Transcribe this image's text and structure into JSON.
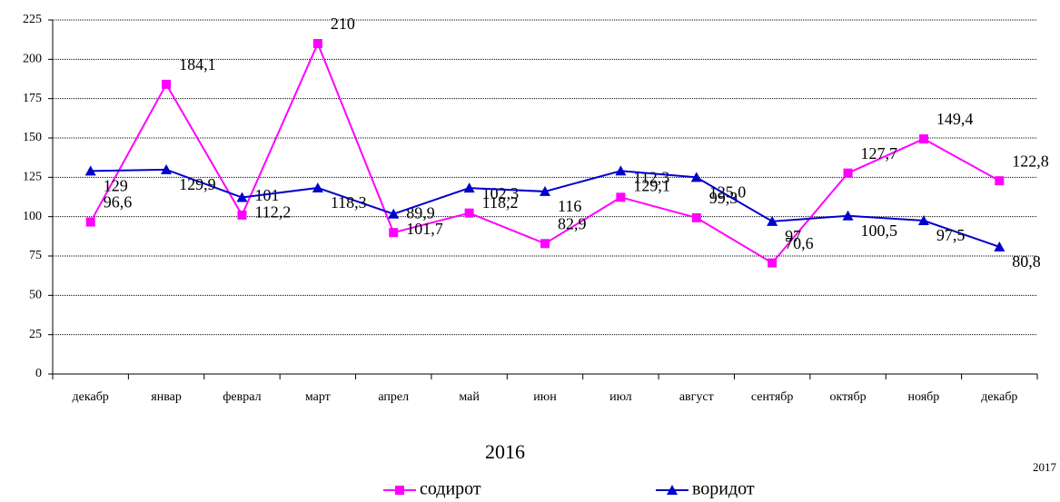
{
  "chart_data": {
    "type": "line",
    "categories": [
      "декабр",
      "январ",
      "феврал",
      "март",
      "апрел",
      "май",
      "июн",
      "июл",
      "август",
      "сентябр",
      "октябр",
      "ноябр",
      "декабр"
    ],
    "series": [
      {
        "name": "содирот",
        "color": "#ff00ff",
        "marker": "square",
        "values": [
          96.6,
          184.1,
          101,
          210,
          89.9,
          102.3,
          82.9,
          112.3,
          99.3,
          70.6,
          127.7,
          149.4,
          122.8
        ],
        "value_labels": [
          "96,6",
          "184,1",
          "101",
          "210",
          "89,9",
          "102,3",
          "82,9",
          "112,3",
          "99,3",
          "70,6",
          "127,7",
          "149,4",
          "122,8"
        ]
      },
      {
        "name": "воридот",
        "color": "#0000cc",
        "marker": "triangle",
        "values": [
          129,
          129.9,
          112.2,
          118.3,
          101.7,
          118.2,
          116,
          129.1,
          125.0,
          97,
          100.5,
          97.5,
          80.8
        ],
        "value_labels": [
          "129",
          "129,9",
          "112,2",
          "118,3",
          "101,7",
          "118,2",
          "116",
          "129,1",
          "125,0",
          "97",
          "100,5",
          "97,5",
          "80,8"
        ]
      }
    ],
    "annotations": [
      "2016",
      "2017"
    ],
    "ylim": [
      0,
      225
    ],
    "yticks": [
      0,
      25,
      50,
      75,
      100,
      125,
      150,
      175,
      200,
      225
    ],
    "grid": true,
    "legend": "bottom"
  }
}
